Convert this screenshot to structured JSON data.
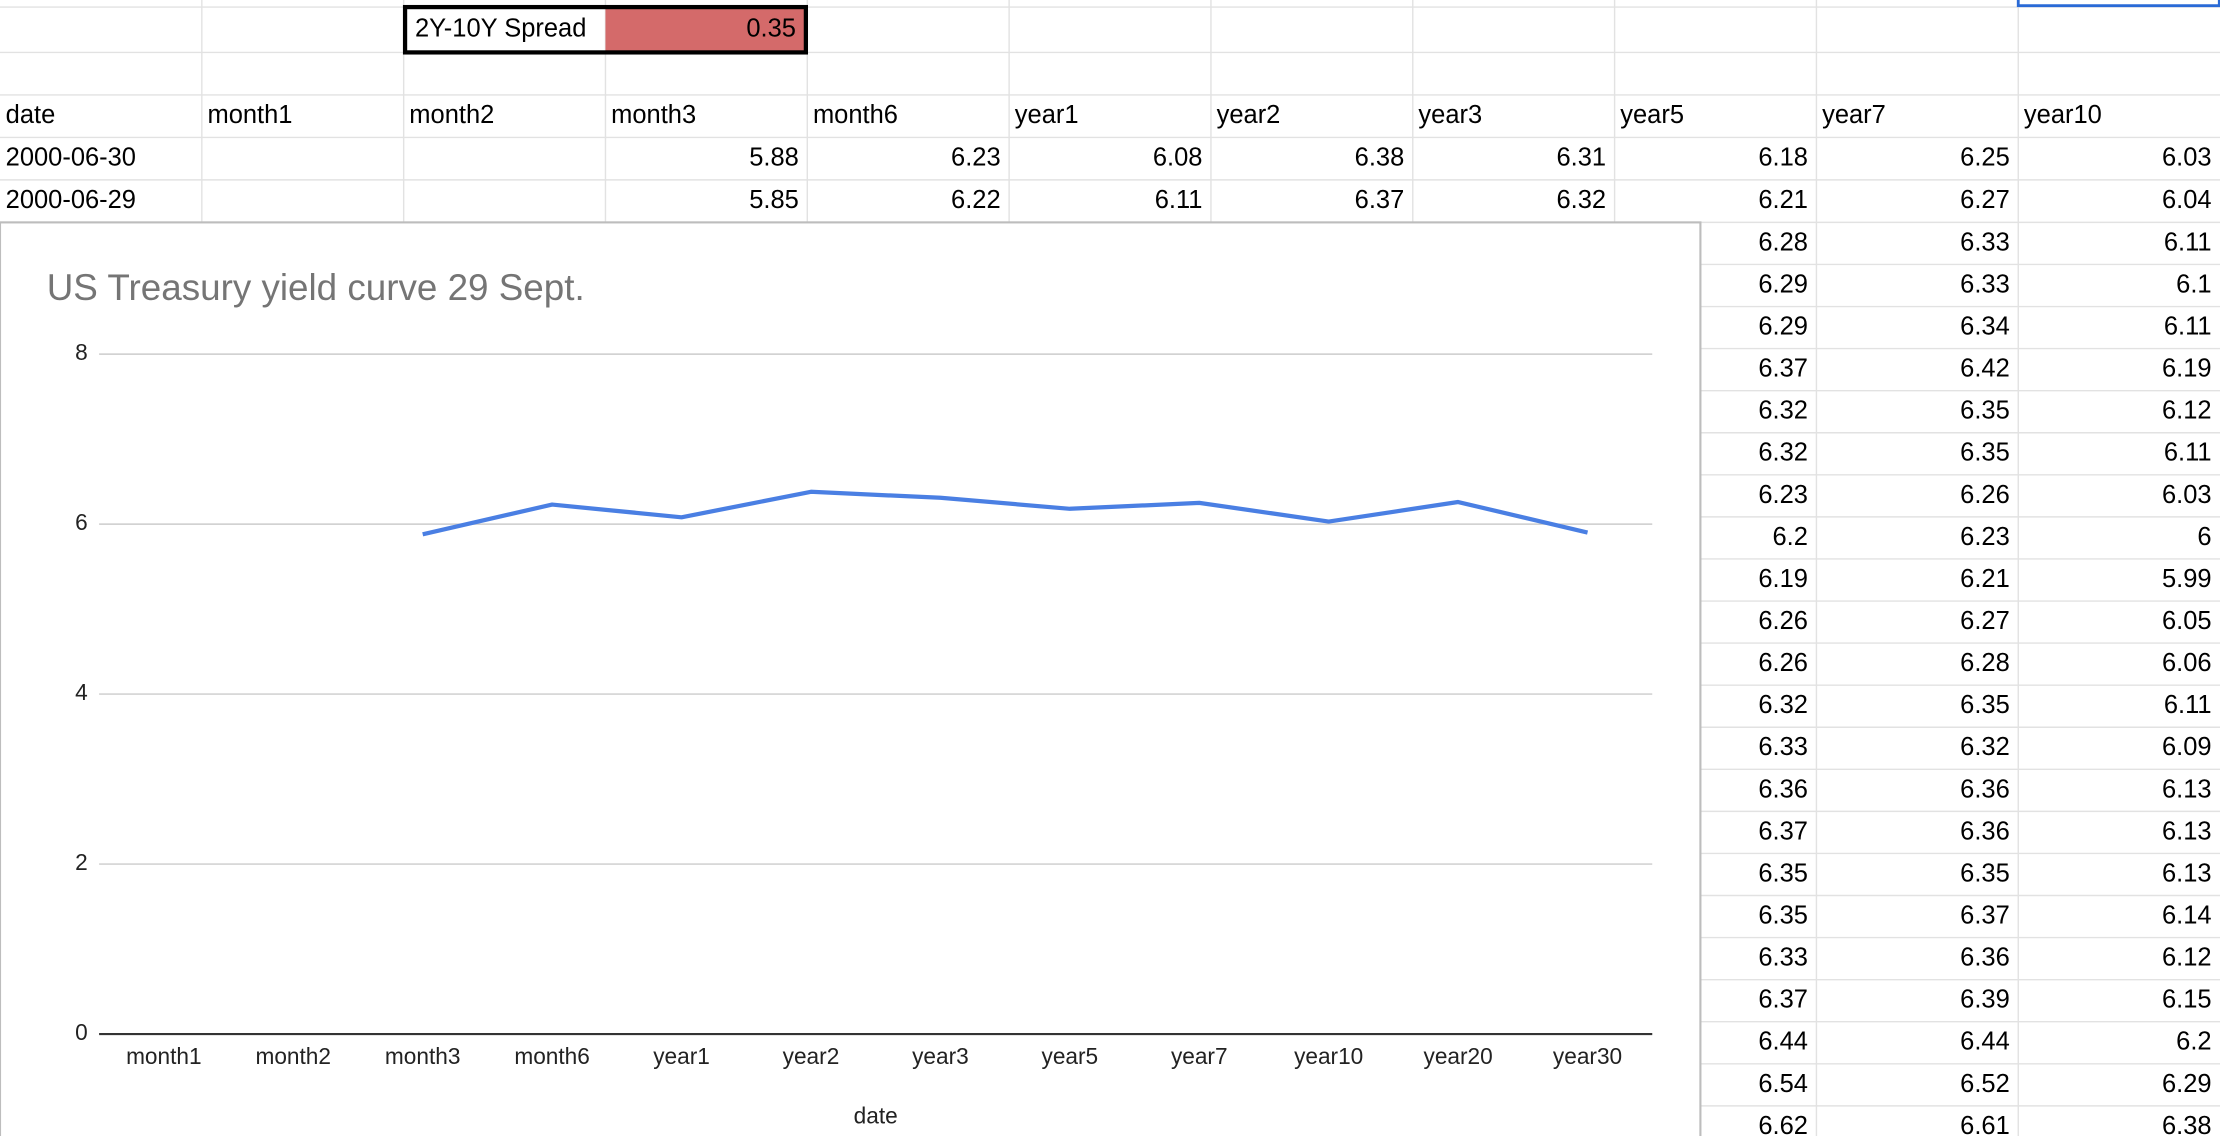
{
  "sheet": {
    "spread_label": "2Y-10Y Spread",
    "spread_value": 0.35,
    "header": [
      "date",
      "month1",
      "month2",
      "month3",
      "month6",
      "year1",
      "year2",
      "year3",
      "year5",
      "year7",
      "year10"
    ],
    "rows": [
      [
        "2000-06-30",
        null,
        null,
        5.88,
        6.23,
        6.08,
        6.38,
        6.31,
        6.18,
        6.25,
        6.03
      ],
      [
        "2000-06-29",
        null,
        null,
        5.85,
        6.22,
        6.11,
        6.37,
        6.32,
        6.21,
        6.27,
        6.04
      ]
    ],
    "lower_rows": [
      [
        6.28,
        6.33,
        6.11
      ],
      [
        6.29,
        6.33,
        6.1
      ],
      [
        6.29,
        6.34,
        6.11
      ],
      [
        6.37,
        6.42,
        6.19
      ],
      [
        6.32,
        6.35,
        6.12
      ],
      [
        6.32,
        6.35,
        6.11
      ],
      [
        6.23,
        6.26,
        6.03
      ],
      [
        6.2,
        6.23,
        6
      ],
      [
        6.19,
        6.21,
        5.99
      ],
      [
        6.26,
        6.27,
        6.05
      ],
      [
        6.26,
        6.28,
        6.06
      ],
      [
        6.32,
        6.35,
        6.11
      ],
      [
        6.33,
        6.32,
        6.09
      ],
      [
        6.36,
        6.36,
        6.13
      ],
      [
        6.37,
        6.36,
        6.13
      ],
      [
        6.35,
        6.35,
        6.13
      ],
      [
        6.35,
        6.37,
        6.14
      ],
      [
        6.33,
        6.36,
        6.12
      ],
      [
        6.37,
        6.39,
        6.15
      ],
      [
        6.44,
        6.44,
        6.2
      ],
      [
        6.54,
        6.52,
        6.29
      ],
      [
        6.62,
        6.61,
        6.38
      ]
    ]
  },
  "chart_data": {
    "type": "line",
    "title": "US Treasury yield curve 29 Sept.",
    "x_label": "date",
    "categories": [
      "month1",
      "month2",
      "month3",
      "month6",
      "year1",
      "year2",
      "year3",
      "year5",
      "year7",
      "year10",
      "year20",
      "year30"
    ],
    "values": [
      null,
      null,
      5.88,
      6.23,
      6.08,
      6.38,
      6.31,
      6.18,
      6.25,
      6.03,
      6.26,
      5.9
    ],
    "color": "#4a7fe3",
    "ylim": [
      0,
      8
    ],
    "yticks": [
      0,
      2,
      4,
      6,
      8
    ],
    "grid": true
  }
}
